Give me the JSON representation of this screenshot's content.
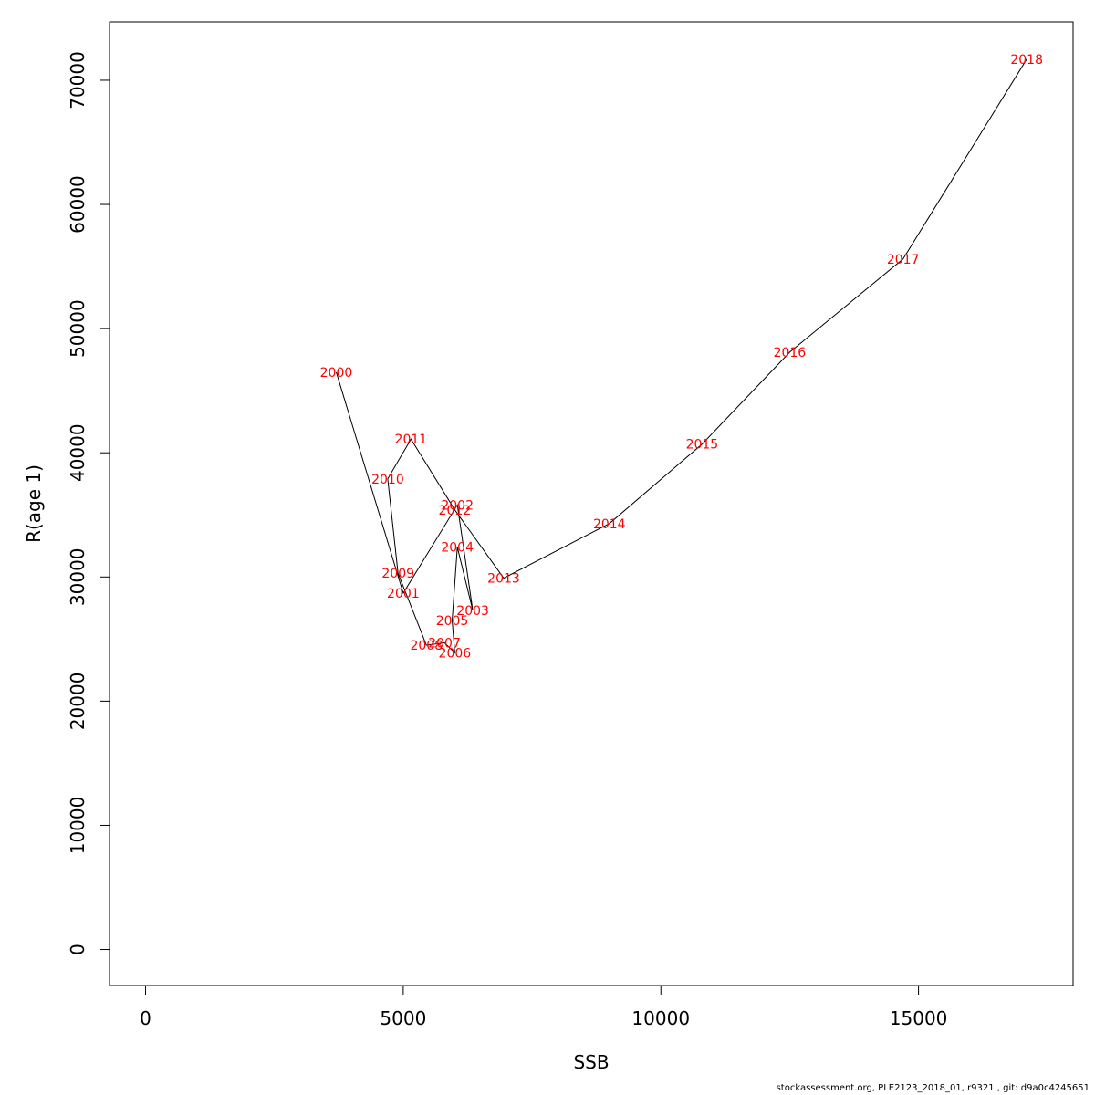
{
  "chart_data": {
    "type": "line",
    "xlabel": "SSB",
    "ylabel": "R(age 1)",
    "xlim": [
      -700,
      18000
    ],
    "ylim": [
      -2900,
      74700
    ],
    "x_ticks": [
      0,
      5000,
      10000,
      15000
    ],
    "y_ticks": [
      0,
      10000,
      20000,
      30000,
      40000,
      50000,
      60000,
      70000
    ],
    "grid": false,
    "line_color": "#000000",
    "label_color": "#ff0000",
    "points": [
      {
        "label": "2000",
        "x": 3700,
        "y": 46500
      },
      {
        "label": "2001",
        "x": 5000,
        "y": 28700
      },
      {
        "label": "2002",
        "x": 6050,
        "y": 35800
      },
      {
        "label": "2003",
        "x": 6350,
        "y": 27300
      },
      {
        "label": "2004",
        "x": 6050,
        "y": 32400
      },
      {
        "label": "2005",
        "x": 5950,
        "y": 26500
      },
      {
        "label": "2006",
        "x": 6000,
        "y": 23900
      },
      {
        "label": "2007",
        "x": 5800,
        "y": 24700
      },
      {
        "label": "2008",
        "x": 5450,
        "y": 24500
      },
      {
        "label": "2009",
        "x": 4900,
        "y": 30300
      },
      {
        "label": "2010",
        "x": 4700,
        "y": 37900
      },
      {
        "label": "2011",
        "x": 5150,
        "y": 41100
      },
      {
        "label": "2012",
        "x": 6000,
        "y": 35400
      },
      {
        "label": "2013",
        "x": 6950,
        "y": 29900
      },
      {
        "label": "2014",
        "x": 9000,
        "y": 34300
      },
      {
        "label": "2015",
        "x": 10800,
        "y": 40700
      },
      {
        "label": "2016",
        "x": 12500,
        "y": 48100
      },
      {
        "label": "2017",
        "x": 14700,
        "y": 55600
      },
      {
        "label": "2018",
        "x": 17100,
        "y": 71700
      }
    ]
  },
  "footer": "stockassessment.org, PLE2123_2018_01, r9321 , git: d9a0c4245651"
}
